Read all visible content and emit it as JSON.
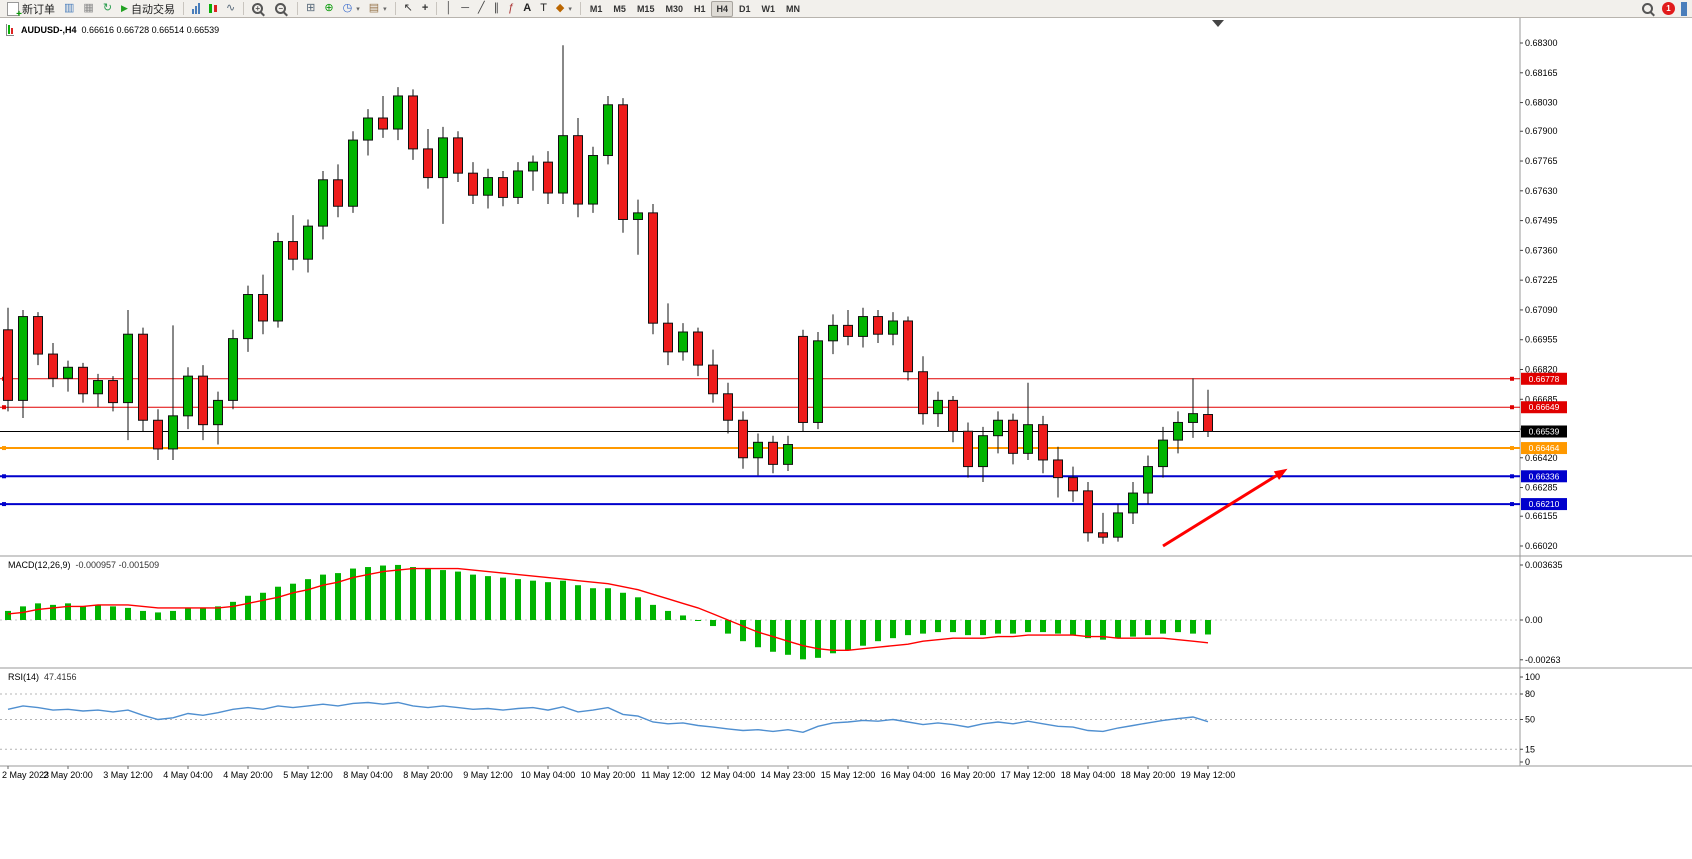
{
  "toolbar": {
    "new_order_label": "新订单",
    "auto_trading_label": "自动交易",
    "timeframes": [
      "M1",
      "M5",
      "M15",
      "M30",
      "H1",
      "H4",
      "D1",
      "W1",
      "MN"
    ],
    "active_timeframe": "H4",
    "notification_count": "1"
  },
  "chart": {
    "title": "AUDUSD-,H4",
    "ohlc": "0.66616 0.66728 0.66514 0.66539"
  },
  "chart_data": {
    "type": "candlestick",
    "symbol": "AUDUSD-",
    "timeframe": "H4",
    "colors": {
      "up": "#00b400",
      "down": "#ee1c1c",
      "outline": "#111111",
      "macd_hist": "#00b400",
      "macd_signal": "#ff0000",
      "rsi_line": "#4f8fd0",
      "arrow": "#ff0000"
    },
    "price_axis": {
      "max": 0.683,
      "min": 0.6602,
      "labels": [
        "0.68300",
        "0.68165",
        "0.68030",
        "0.67900",
        "0.67765",
        "0.67630",
        "0.67495",
        "0.67360",
        "0.67225",
        "0.67090",
        "0.66955",
        "0.66820",
        "0.66685",
        "0.66550",
        "0.66420",
        "0.66285",
        "0.66155",
        "0.66020"
      ]
    },
    "x_axis": {
      "step": 4,
      "labels": [
        "2 May 2023",
        "2 May 20:00",
        "3 May 12:00",
        "4 May 04:00",
        "4 May 20:00",
        "5 May 12:00",
        "8 May 04:00",
        "8 May 20:00",
        "9 May 12:00",
        "10 May 04:00",
        "10 May 20:00",
        "11 May 12:00",
        "12 May 04:00",
        "14 May 23:00",
        "15 May 12:00",
        "16 May 04:00",
        "16 May 20:00",
        "17 May 12:00",
        "18 May 04:00",
        "18 May 20:00",
        "19 May 12:00"
      ]
    },
    "candles": [
      [
        0.67,
        0.671,
        0.6663,
        0.6668
      ],
      [
        0.6668,
        0.6709,
        0.666,
        0.6706
      ],
      [
        0.6706,
        0.6708,
        0.6684,
        0.6689
      ],
      [
        0.6689,
        0.6694,
        0.6674,
        0.6678
      ],
      [
        0.6678,
        0.6686,
        0.6672,
        0.6683
      ],
      [
        0.6683,
        0.6685,
        0.6667,
        0.6671
      ],
      [
        0.6671,
        0.668,
        0.6665,
        0.6677
      ],
      [
        0.6677,
        0.6679,
        0.6663,
        0.6667
      ],
      [
        0.6667,
        0.6709,
        0.665,
        0.6698
      ],
      [
        0.6698,
        0.6701,
        0.6654,
        0.6659
      ],
      [
        0.6659,
        0.6664,
        0.6641,
        0.6646
      ],
      [
        0.6646,
        0.6702,
        0.6641,
        0.6661
      ],
      [
        0.6661,
        0.6683,
        0.6655,
        0.6679
      ],
      [
        0.6679,
        0.6684,
        0.665,
        0.6657
      ],
      [
        0.6657,
        0.6672,
        0.6648,
        0.6668
      ],
      [
        0.6668,
        0.67,
        0.6664,
        0.6696
      ],
      [
        0.6696,
        0.672,
        0.669,
        0.6716
      ],
      [
        0.6716,
        0.6725,
        0.6698,
        0.6704
      ],
      [
        0.6704,
        0.6744,
        0.6701,
        0.674
      ],
      [
        0.674,
        0.6752,
        0.6727,
        0.6732
      ],
      [
        0.6732,
        0.675,
        0.6726,
        0.6747
      ],
      [
        0.6747,
        0.6772,
        0.6741,
        0.6768
      ],
      [
        0.6768,
        0.6775,
        0.6751,
        0.6756
      ],
      [
        0.6756,
        0.679,
        0.6753,
        0.6786
      ],
      [
        0.6786,
        0.68,
        0.6779,
        0.6796
      ],
      [
        0.6796,
        0.6806,
        0.6787,
        0.6791
      ],
      [
        0.6791,
        0.681,
        0.6786,
        0.6806
      ],
      [
        0.6806,
        0.6809,
        0.6777,
        0.6782
      ],
      [
        0.6782,
        0.6791,
        0.6764,
        0.6769
      ],
      [
        0.6769,
        0.6792,
        0.6748,
        0.6787
      ],
      [
        0.6787,
        0.679,
        0.6767,
        0.6771
      ],
      [
        0.6771,
        0.6776,
        0.6757,
        0.6761
      ],
      [
        0.6761,
        0.6773,
        0.6755,
        0.6769
      ],
      [
        0.6769,
        0.6772,
        0.6756,
        0.676
      ],
      [
        0.676,
        0.6776,
        0.6757,
        0.6772
      ],
      [
        0.6772,
        0.6779,
        0.6763,
        0.6776
      ],
      [
        0.6776,
        0.6781,
        0.6757,
        0.6762
      ],
      [
        0.6762,
        0.6829,
        0.6757,
        0.6788
      ],
      [
        0.6788,
        0.6796,
        0.6751,
        0.6757
      ],
      [
        0.6757,
        0.6783,
        0.6753,
        0.6779
      ],
      [
        0.6779,
        0.6806,
        0.6775,
        0.6802
      ],
      [
        0.6802,
        0.6805,
        0.6744,
        0.675
      ],
      [
        0.675,
        0.6759,
        0.6734,
        0.6753
      ],
      [
        0.6753,
        0.6757,
        0.6698,
        0.6703
      ],
      [
        0.6703,
        0.6712,
        0.6684,
        0.669
      ],
      [
        0.669,
        0.6703,
        0.6686,
        0.6699
      ],
      [
        0.6699,
        0.6701,
        0.6679,
        0.6684
      ],
      [
        0.6684,
        0.6691,
        0.6667,
        0.6671
      ],
      [
        0.6671,
        0.6676,
        0.6653,
        0.6659
      ],
      [
        0.6659,
        0.6663,
        0.6637,
        0.6642
      ],
      [
        0.6642,
        0.6653,
        0.6634,
        0.6649
      ],
      [
        0.6649,
        0.6652,
        0.6635,
        0.6639
      ],
      [
        0.6639,
        0.6652,
        0.6636,
        0.6648
      ],
      [
        0.6697,
        0.67,
        0.6654,
        0.6658
      ],
      [
        0.6658,
        0.6699,
        0.6655,
        0.6695
      ],
      [
        0.6695,
        0.6707,
        0.6689,
        0.6702
      ],
      [
        0.6702,
        0.6709,
        0.6693,
        0.6697
      ],
      [
        0.6697,
        0.671,
        0.6692,
        0.6706
      ],
      [
        0.6706,
        0.6709,
        0.6694,
        0.6698
      ],
      [
        0.6698,
        0.6708,
        0.6693,
        0.6704
      ],
      [
        0.6704,
        0.6706,
        0.6677,
        0.6681
      ],
      [
        0.6681,
        0.6688,
        0.6657,
        0.6662
      ],
      [
        0.6662,
        0.6672,
        0.6656,
        0.6668
      ],
      [
        0.6668,
        0.667,
        0.6649,
        0.6654
      ],
      [
        0.6654,
        0.6658,
        0.6633,
        0.6638
      ],
      [
        0.6638,
        0.6656,
        0.6631,
        0.6652
      ],
      [
        0.6652,
        0.6663,
        0.6644,
        0.6659
      ],
      [
        0.6659,
        0.6662,
        0.6639,
        0.6644
      ],
      [
        0.6644,
        0.6676,
        0.6641,
        0.6657
      ],
      [
        0.6657,
        0.6661,
        0.6635,
        0.6641
      ],
      [
        0.6641,
        0.6647,
        0.6624,
        0.6633
      ],
      [
        0.6633,
        0.6638,
        0.6622,
        0.6627
      ],
      [
        0.6627,
        0.6631,
        0.6604,
        0.6608
      ],
      [
        0.6608,
        0.6617,
        0.6603,
        0.6606
      ],
      [
        0.6606,
        0.6621,
        0.6604,
        0.6617
      ],
      [
        0.6617,
        0.6631,
        0.6612,
        0.6626
      ],
      [
        0.6626,
        0.6643,
        0.6621,
        0.6638
      ],
      [
        0.6638,
        0.6656,
        0.6633,
        0.665
      ],
      [
        0.665,
        0.6663,
        0.6644,
        0.6658
      ],
      [
        0.6658,
        0.6678,
        0.6651,
        0.6662
      ],
      [
        0.66616,
        0.66728,
        0.66514,
        0.66539
      ]
    ],
    "hlines": [
      {
        "price": 0.66778,
        "label": "0.66778",
        "color": "#e00000",
        "width": 1
      },
      {
        "price": 0.66649,
        "label": "0.66649",
        "color": "#e00000",
        "width": 1
      },
      {
        "price": 0.66539,
        "label": "0.66539",
        "color": "#000000",
        "width": 1
      },
      {
        "price": 0.66464,
        "label": "0.66464",
        "color": "#ff9900",
        "width": 2
      },
      {
        "price": 0.66336,
        "label": "0.66336",
        "color": "#0000cc",
        "width": 2
      },
      {
        "price": 0.6621,
        "label": "0.66210",
        "color": "#0000cc",
        "width": 2
      }
    ],
    "arrow": {
      "color": "#ff0000",
      "from": {
        "index": 77,
        "price": 0.6602
      },
      "to": {
        "index": 85.3,
        "price": 0.6637
      }
    },
    "macd": {
      "name": "MACD(12,26,9)",
      "values_text": "-0.000957 -0.001509",
      "axis": [
        [
          "0.003635",
          0.003635
        ],
        [
          "0.00",
          0
        ],
        [
          "-0.00263",
          -0.00263
        ]
      ],
      "histogram": [
        0.0006,
        0.0009,
        0.0011,
        0.001,
        0.0011,
        0.0009,
        0.001,
        0.0009,
        0.0008,
        0.0006,
        0.0005,
        0.0006,
        0.0008,
        0.0008,
        0.0009,
        0.0012,
        0.0016,
        0.0018,
        0.0022,
        0.0024,
        0.0027,
        0.003,
        0.0031,
        0.0034,
        0.0035,
        0.0036,
        0.00364,
        0.0035,
        0.0034,
        0.0033,
        0.0032,
        0.003,
        0.0029,
        0.0028,
        0.0027,
        0.0026,
        0.0025,
        0.0026,
        0.0023,
        0.0021,
        0.0021,
        0.0018,
        0.0015,
        0.001,
        0.0006,
        0.0003,
        0.0,
        -0.0004,
        -0.0009,
        -0.0014,
        -0.0018,
        -0.0021,
        -0.0023,
        -0.0026,
        -0.0025,
        -0.0022,
        -0.002,
        -0.0017,
        -0.0014,
        -0.0012,
        -0.001,
        -0.0009,
        -0.0008,
        -0.0008,
        -0.001,
        -0.001,
        -0.0009,
        -0.0009,
        -0.0008,
        -0.0008,
        -0.0009,
        -0.001,
        -0.0012,
        -0.0013,
        -0.0012,
        -0.0011,
        -0.001,
        -0.0009,
        -0.0008,
        -0.0009,
        -0.000957
      ],
      "signal": [
        0.0004,
        0.0005,
        0.0007,
        0.0008,
        0.0009,
        0.0009,
        0.001,
        0.001,
        0.001,
        0.0009,
        0.0008,
        0.0008,
        0.0008,
        0.0008,
        0.0008,
        0.0009,
        0.0011,
        0.0013,
        0.0015,
        0.0018,
        0.002,
        0.0023,
        0.0025,
        0.0028,
        0.003,
        0.0032,
        0.0033,
        0.0034,
        0.0034,
        0.0034,
        0.0034,
        0.0033,
        0.0032,
        0.0031,
        0.003,
        0.0029,
        0.0028,
        0.0027,
        0.0026,
        0.0025,
        0.0024,
        0.0022,
        0.002,
        0.0017,
        0.0014,
        0.0011,
        0.0008,
        0.0004,
        0.0,
        -0.0004,
        -0.0008,
        -0.0011,
        -0.0014,
        -0.0017,
        -0.0019,
        -0.002,
        -0.002,
        -0.0019,
        -0.0018,
        -0.0017,
        -0.0016,
        -0.0014,
        -0.0013,
        -0.0012,
        -0.0012,
        -0.0012,
        -0.0011,
        -0.0011,
        -0.001,
        -0.001,
        -0.001,
        -0.001,
        -0.0011,
        -0.0011,
        -0.0012,
        -0.0012,
        -0.0012,
        -0.0012,
        -0.0013,
        -0.0014,
        -0.001509
      ]
    },
    "rsi": {
      "name": "RSI(14)",
      "value_text": "47.4156",
      "levels": [
        80,
        50,
        15
      ],
      "axis": [
        [
          "100",
          100
        ],
        [
          "80",
          80
        ],
        [
          "50",
          50
        ],
        [
          "15",
          15
        ],
        [
          "0",
          0
        ]
      ],
      "values": [
        62,
        66,
        64,
        61,
        62,
        60,
        61,
        59,
        61,
        55,
        50,
        52,
        57,
        55,
        58,
        62,
        64,
        62,
        66,
        64,
        66,
        68,
        66,
        69,
        70,
        68,
        70,
        66,
        64,
        66,
        64,
        62,
        63,
        61,
        63,
        64,
        61,
        65,
        59,
        61,
        64,
        56,
        54,
        47,
        45,
        46,
        43,
        41,
        39,
        37,
        38,
        36,
        38,
        35,
        42,
        46,
        47,
        49,
        48,
        50,
        47,
        44,
        46,
        44,
        41,
        45,
        47,
        45,
        48,
        45,
        42,
        41,
        37,
        36,
        40,
        43,
        46,
        49,
        51,
        53,
        47.42
      ]
    }
  }
}
